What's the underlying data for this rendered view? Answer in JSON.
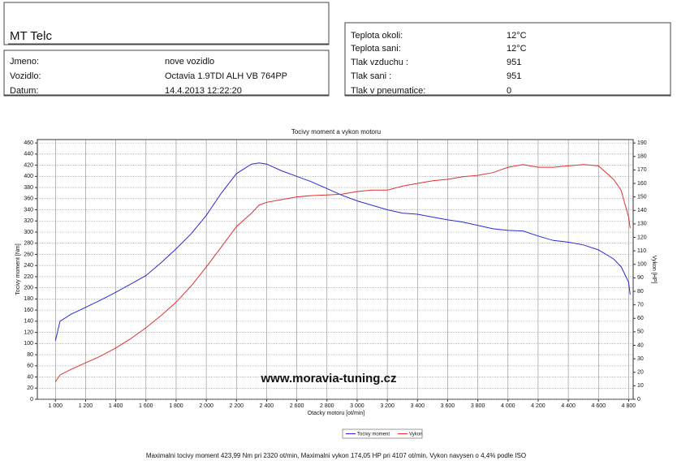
{
  "header": {
    "title": "MT Telc",
    "left_rows": [
      [
        "Jmeno:",
        "nove vozidlo"
      ],
      [
        "Vozidlo:",
        "Octavia 1.9TDI ALH VB 764PP"
      ],
      [
        "Datum:",
        "14.4.2013 12:22:20"
      ]
    ],
    "right_rows": [
      [
        "Teplota okoli:",
        "12°C"
      ],
      [
        "Teplota sani:",
        "12°C"
      ],
      [
        "Tlak vzduchu :",
        "951"
      ],
      [
        "Tlak sani :",
        "951"
      ],
      [
        "Tlak v pneumatice:",
        "0"
      ]
    ]
  },
  "chart_data": {
    "type": "line",
    "title": "Tocivy moment a vykon motoru",
    "x_label": "Otacky motoru [ot/min]",
    "y_label": "Tocivy moment [Nm]",
    "y2_label": "Vykon [HP]",
    "watermark": "www.moravia-tuning.cz",
    "footer": "Maximalni tocivy moment 423,99 Nm pri 2320 ot/min,  Maximalni vykon 174,05 HP pri 4107 ot/min,  Vykon navysen o 4,4% podle ISO",
    "grid": true,
    "x": [
      1000,
      1030,
      1100,
      1200,
      1300,
      1400,
      1500,
      1600,
      1700,
      1800,
      1900,
      2000,
      2100,
      2200,
      2300,
      2350,
      2400,
      2500,
      2600,
      2700,
      2800,
      2900,
      3000,
      3100,
      3200,
      3300,
      3400,
      3500,
      3600,
      3700,
      3800,
      3900,
      4000,
      4100,
      4200,
      4300,
      4400,
      4500,
      4600,
      4700,
      4750,
      4800,
      4810
    ],
    "series": [
      {
        "name": "Tocivy moment",
        "color": "#2a2ad8",
        "values": [
          105,
          140,
          152,
          165,
          178,
          192,
          207,
          222,
          245,
          270,
          297,
          330,
          370,
          405,
          422,
          424,
          422,
          410,
          400,
          390,
          378,
          366,
          356,
          348,
          340,
          334,
          332,
          327,
          322,
          318,
          312,
          306,
          303,
          302,
          293,
          285,
          282,
          277,
          268,
          252,
          238,
          210,
          188
        ]
      },
      {
        "name": "Vykon",
        "color": "#e03030",
        "axis": "y2",
        "values": [
          13,
          18,
          22,
          27,
          32,
          38,
          45,
          53,
          62,
          72,
          84,
          98,
          113,
          128,
          138,
          144,
          146,
          148,
          150,
          151,
          151.5,
          152,
          154,
          155,
          155,
          158,
          160,
          162,
          163,
          165,
          166,
          168,
          172,
          174,
          172,
          172,
          173,
          174,
          173,
          163,
          155,
          135,
          127
        ]
      }
    ],
    "xlim": [
      880,
      4830
    ],
    "xticks": [
      {
        "value": 1000,
        "label": "1 000"
      },
      {
        "value": 1200,
        "label": "1 200"
      },
      {
        "value": 1400,
        "label": "1 400"
      },
      {
        "value": 1600,
        "label": "1 600"
      },
      {
        "value": 1800,
        "label": "1 800"
      },
      {
        "value": 2000,
        "label": "2 000"
      },
      {
        "value": 2200,
        "label": "2 200"
      },
      {
        "value": 2400,
        "label": "2 400"
      },
      {
        "value": 2600,
        "label": "2 600"
      },
      {
        "value": 2800,
        "label": "2 800"
      },
      {
        "value": 3000,
        "label": "3 000"
      },
      {
        "value": 3200,
        "label": "3 200"
      },
      {
        "value": 3400,
        "label": "3 400"
      },
      {
        "value": 3600,
        "label": "3 600"
      },
      {
        "value": 3800,
        "label": "3 800"
      },
      {
        "value": 4000,
        "label": "4 000"
      },
      {
        "value": 4200,
        "label": "4 200"
      },
      {
        "value": 4400,
        "label": "4 400"
      },
      {
        "value": 4600,
        "label": "4 600"
      },
      {
        "value": 4800,
        "label": "4 800"
      }
    ],
    "ylim": [
      0,
      466
    ],
    "yticks": [
      0,
      20,
      40,
      60,
      80,
      100,
      120,
      140,
      160,
      180,
      200,
      220,
      240,
      260,
      280,
      300,
      320,
      340,
      360,
      380,
      400,
      420,
      440,
      460
    ],
    "y2lim": [
      0,
      192.5
    ],
    "y2ticks": [
      0,
      10,
      20,
      30,
      40,
      50,
      60,
      70,
      80,
      90,
      100,
      110,
      120,
      130,
      140,
      150,
      160,
      170,
      180,
      190
    ]
  }
}
